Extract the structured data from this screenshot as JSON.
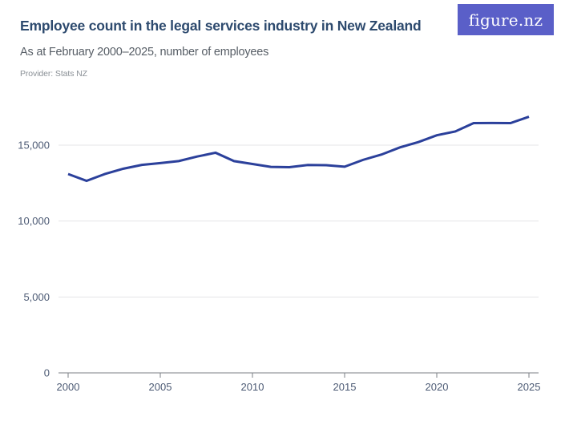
{
  "header": {
    "title": "Employee count in the legal services industry in New Zealand",
    "subtitle": "As at February 2000–2025, number of employees",
    "provider": "Provider: Stats NZ",
    "logo_text": "figure.nz"
  },
  "chart_data": {
    "type": "line",
    "title": "Employee count in the legal services industry in New Zealand",
    "subtitle": "As at February 2000–2025, number of employees",
    "series": [
      {
        "name": "Number of employees",
        "x": [
          2000,
          2001,
          2002,
          2003,
          2004,
          2005,
          2006,
          2007,
          2008,
          2009,
          2010,
          2011,
          2012,
          2013,
          2014,
          2015,
          2016,
          2017,
          2018,
          2019,
          2020,
          2021,
          2022,
          2023,
          2024,
          2025
        ],
        "values": [
          13100,
          12650,
          13100,
          13450,
          13700,
          13820,
          13950,
          14250,
          14500,
          13950,
          13760,
          13570,
          13550,
          13690,
          13680,
          13580,
          14030,
          14380,
          14850,
          15200,
          15650,
          15900,
          16450,
          16460,
          16450,
          16870
        ]
      }
    ],
    "xlabel": "",
    "ylabel": "",
    "x_ticks": [
      2000,
      2005,
      2010,
      2015,
      2020,
      2025
    ],
    "y_ticks": [
      0,
      5000,
      10000,
      15000
    ],
    "y_tick_labels": [
      "0",
      "5,000",
      "10,000",
      "15,000"
    ],
    "xlim": [
      2000,
      2025
    ],
    "ylim": [
      0,
      17200
    ],
    "grid": "horizontal",
    "legend": "none",
    "line_color": "#2b409b",
    "grid_color": "#e4e4e7",
    "axis_color": "#7b7f85",
    "tick_label_color": "#4c5a74"
  },
  "colors": {
    "title": "#2d4a6e",
    "subtitle": "#575e66",
    "provider": "#8a9096",
    "logo_background": "#5a5fc8",
    "logo_text": "#ffffff",
    "background": "#ffffff"
  }
}
